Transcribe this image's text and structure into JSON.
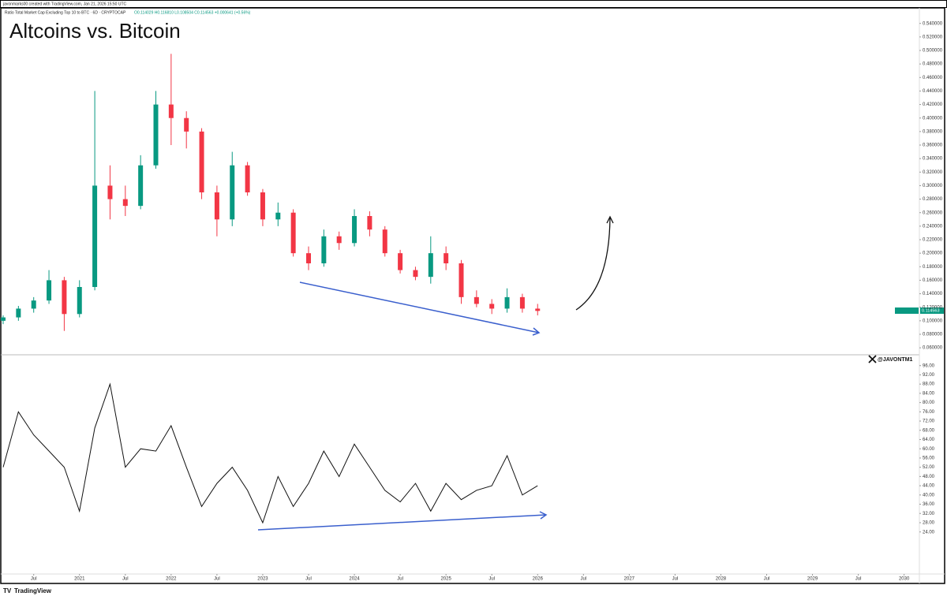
{
  "header": {
    "author": "javonmarks00 created with TradingView.com, Jan 21, 2026 15:50 UTC",
    "symbol": "Ratio Total Market Cap Excluding Top 10 to BTC · 6D · CRYPTOCAP",
    "ohlc": "O0.114029 H0.116810 L0.108504 C0.114563 +0.000641 (+0.56%)"
  },
  "price_label": "0.114563",
  "watermark": "@JAVONTM1",
  "footer": {
    "brand": "TradingView"
  },
  "chart_data": [
    {
      "type": "candlestick",
      "title": "Altcoins vs. Bitcoin",
      "up_color": "#089981",
      "down_color": "#f23645",
      "x": [
        "2020-03",
        "2020-05",
        "2020-07",
        "2020-09",
        "2020-11",
        "2021-01",
        "2021-03",
        "2021-05",
        "2021-07",
        "2021-09",
        "2021-11",
        "2022-01",
        "2022-03",
        "2022-05",
        "2022-07",
        "2022-09",
        "2022-11",
        "2023-01",
        "2023-03",
        "2023-05",
        "2023-07",
        "2023-09",
        "2023-11",
        "2024-01",
        "2024-03",
        "2024-05",
        "2024-07",
        "2024-09",
        "2024-11",
        "2025-01",
        "2025-03",
        "2025-05",
        "2025-07",
        "2025-09",
        "2025-11",
        "2026-01"
      ],
      "open": [
        0.1,
        0.105,
        0.118,
        0.13,
        0.16,
        0.11,
        0.15,
        0.3,
        0.28,
        0.27,
        0.33,
        0.42,
        0.4,
        0.38,
        0.29,
        0.25,
        0.33,
        0.29,
        0.25,
        0.26,
        0.2,
        0.185,
        0.225,
        0.215,
        0.255,
        0.235,
        0.2,
        0.175,
        0.165,
        0.2,
        0.185,
        0.135,
        0.125,
        0.118,
        0.135,
        0.118
      ],
      "high": [
        0.108,
        0.122,
        0.135,
        0.175,
        0.165,
        0.16,
        0.44,
        0.33,
        0.3,
        0.345,
        0.44,
        0.495,
        0.41,
        0.385,
        0.3,
        0.35,
        0.335,
        0.295,
        0.275,
        0.265,
        0.21,
        0.235,
        0.232,
        0.265,
        0.262,
        0.24,
        0.205,
        0.18,
        0.225,
        0.21,
        0.19,
        0.145,
        0.132,
        0.148,
        0.14,
        0.125
      ],
      "low": [
        0.095,
        0.1,
        0.112,
        0.125,
        0.085,
        0.105,
        0.145,
        0.25,
        0.255,
        0.265,
        0.325,
        0.36,
        0.355,
        0.28,
        0.225,
        0.24,
        0.285,
        0.24,
        0.24,
        0.195,
        0.175,
        0.18,
        0.205,
        0.21,
        0.225,
        0.195,
        0.17,
        0.16,
        0.155,
        0.175,
        0.125,
        0.12,
        0.11,
        0.112,
        0.112,
        0.108
      ],
      "close": [
        0.105,
        0.118,
        0.13,
        0.16,
        0.11,
        0.15,
        0.3,
        0.28,
        0.27,
        0.33,
        0.42,
        0.4,
        0.38,
        0.29,
        0.25,
        0.33,
        0.29,
        0.25,
        0.26,
        0.2,
        0.185,
        0.225,
        0.215,
        0.255,
        0.235,
        0.2,
        0.175,
        0.165,
        0.2,
        0.185,
        0.135,
        0.125,
        0.118,
        0.135,
        0.118,
        0.1146
      ],
      "xlim": [
        "2020-03",
        "2030-03"
      ],
      "ylim": [
        0.052,
        0.563
      ],
      "yticks": [
        {
          "value": 0.54,
          "label": "0.540000"
        },
        {
          "value": 0.52,
          "label": "0.520000"
        },
        {
          "value": 0.5,
          "label": "0.500000"
        },
        {
          "value": 0.48,
          "label": "0.480000"
        },
        {
          "value": 0.46,
          "label": "0.460000"
        },
        {
          "value": 0.44,
          "label": "0.440000"
        },
        {
          "value": 0.42,
          "label": "0.420000"
        },
        {
          "value": 0.4,
          "label": "0.400000"
        },
        {
          "value": 0.38,
          "label": "0.380000"
        },
        {
          "value": 0.36,
          "label": "0.360000"
        },
        {
          "value": 0.34,
          "label": "0.340000"
        },
        {
          "value": 0.32,
          "label": "0.320000"
        },
        {
          "value": 0.3,
          "label": "0.300000"
        },
        {
          "value": 0.28,
          "label": "0.280000"
        },
        {
          "value": 0.26,
          "label": "0.260000"
        },
        {
          "value": 0.24,
          "label": "0.240000"
        },
        {
          "value": 0.22,
          "label": "0.220000"
        },
        {
          "value": 0.2,
          "label": "0.200000"
        },
        {
          "value": 0.18,
          "label": "0.180000"
        },
        {
          "value": 0.16,
          "label": "0.160000"
        },
        {
          "value": 0.14,
          "label": "0.140000"
        },
        {
          "value": 0.12,
          "label": "0.120000"
        },
        {
          "value": 0.1,
          "label": "0.100000"
        },
        {
          "value": 0.08,
          "label": "0.080000"
        },
        {
          "value": 0.06,
          "label": "0.060000"
        }
      ]
    },
    {
      "type": "line",
      "series": [
        {
          "color": "#111111",
          "x": [
            "2020-03",
            "2020-05",
            "2020-07",
            "2020-09",
            "2020-11",
            "2021-01",
            "2021-03",
            "2021-05",
            "2021-07",
            "2021-09",
            "2021-11",
            "2022-01",
            "2022-03",
            "2022-05",
            "2022-07",
            "2022-09",
            "2022-11",
            "2023-01",
            "2023-03",
            "2023-05",
            "2023-07",
            "2023-09",
            "2023-11",
            "2024-01",
            "2024-03",
            "2024-05",
            "2024-07",
            "2024-09",
            "2024-11",
            "2025-01",
            "2025-03",
            "2025-05",
            "2025-07",
            "2025-09",
            "2025-11",
            "2026-01"
          ],
          "values": [
            52,
            76,
            66,
            59,
            52,
            33,
            69,
            88,
            52,
            60,
            59,
            70,
            52,
            35,
            45,
            52,
            42,
            28,
            48,
            35,
            45,
            59,
            48,
            62,
            52,
            42,
            37,
            45,
            33,
            45,
            38,
            42,
            44,
            57,
            40,
            44
          ]
        }
      ],
      "xlim": [
        "2020-03",
        "2030-03"
      ],
      "ylim": [
        5.8,
        100
      ],
      "yticks": [
        {
          "value": 96,
          "label": "96.00"
        },
        {
          "value": 92,
          "label": "92.00"
        },
        {
          "value": 88,
          "label": "88.00"
        },
        {
          "value": 84,
          "label": "84.00"
        },
        {
          "value": 80,
          "label": "80.00"
        },
        {
          "value": 76,
          "label": "76.00"
        },
        {
          "value": 72,
          "label": "72.00"
        },
        {
          "value": 68,
          "label": "68.00"
        },
        {
          "value": 64,
          "label": "64.00"
        },
        {
          "value": 60,
          "label": "60.00"
        },
        {
          "value": 56,
          "label": "56.00"
        },
        {
          "value": 52,
          "label": "52.00"
        },
        {
          "value": 48,
          "label": "48.00"
        },
        {
          "value": 44,
          "label": "44.00"
        },
        {
          "value": 40,
          "label": "40.00"
        },
        {
          "value": 36,
          "label": "36.00"
        },
        {
          "value": 32,
          "label": "32.00"
        },
        {
          "value": 28,
          "label": "28.00"
        },
        {
          "value": 24,
          "label": "24.00"
        }
      ],
      "xticks": [
        {
          "value": "2020-07",
          "label": "Jul"
        },
        {
          "value": "2021-01",
          "label": "2021"
        },
        {
          "value": "2021-07",
          "label": "Jul"
        },
        {
          "value": "2022-01",
          "label": "2022"
        },
        {
          "value": "2022-07",
          "label": "Jul"
        },
        {
          "value": "2023-01",
          "label": "2023"
        },
        {
          "value": "2023-07",
          "label": "Jul"
        },
        {
          "value": "2024-01",
          "label": "2024"
        },
        {
          "value": "2024-07",
          "label": "Jul"
        },
        {
          "value": "2025-01",
          "label": "2025"
        },
        {
          "value": "2025-07",
          "label": "Jul"
        },
        {
          "value": "2026-01",
          "label": "2026"
        },
        {
          "value": "2026-07",
          "label": "Jul"
        },
        {
          "value": "2027-01",
          "label": "2027"
        },
        {
          "value": "2027-07",
          "label": "Jul"
        },
        {
          "value": "2028-01",
          "label": "2028"
        },
        {
          "value": "2028-07",
          "label": "Jul"
        },
        {
          "value": "2029-01",
          "label": "2029"
        },
        {
          "value": "2029-07",
          "label": "Jul"
        },
        {
          "value": "2030-01",
          "label": "2030"
        }
      ]
    }
  ]
}
